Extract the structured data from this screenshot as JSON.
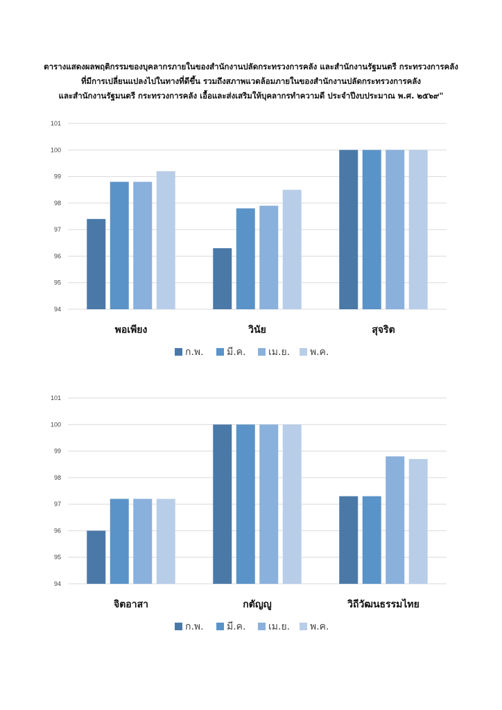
{
  "title_lines": [
    "ตารางแสดงผลพฤติกรรมของบุคลากรภายในของสำนักงานปลัดกระทรวงการคลัง และสำนักงานรัฐมนตรี กระทรวงการคลัง",
    "ที่มีการเปลี่ยนแปลงไปในทางที่ดีขึ้น รวมถึงสภาพแวดล้อมภายในของสำนักงานปลัดกระทรวงการคลัง",
    "และสำนักงานรัฐมนตรี กระทรวงการคลัง เอื้อและส่งเสริมให้บุคลากรทำความดี ประจำปีงบประมาณ พ.ศ. ๒๕๖๙\""
  ],
  "colors": [
    "#4a79a8",
    "#5a93c8",
    "#8ab0dc",
    "#b8cde8"
  ],
  "chart_data": [
    {
      "type": "bar",
      "categories": [
        "พอเพียง",
        "วินัย",
        "สุจริต"
      ],
      "series": [
        {
          "name": "ก.พ.",
          "values": [
            97.4,
            96.3,
            100
          ]
        },
        {
          "name": "มี.ค.",
          "values": [
            98.8,
            97.8,
            100
          ]
        },
        {
          "name": "เม.ย.",
          "values": [
            98.8,
            97.9,
            100
          ]
        },
        {
          "name": "พ.ค.",
          "values": [
            99.2,
            98.5,
            100
          ]
        }
      ],
      "ylim": [
        94,
        101
      ],
      "yticks": [
        "94",
        "95",
        "96",
        "97",
        "98",
        "99",
        "100",
        "101"
      ],
      "grid": true,
      "legend": "bottom"
    },
    {
      "type": "bar",
      "categories": [
        "จิตอาสา",
        "กตัญญู",
        "วิถีวัฒนธรรมไทย"
      ],
      "series": [
        {
          "name": "ก.พ.",
          "values": [
            96,
            100,
            97.3
          ]
        },
        {
          "name": "มี.ค.",
          "values": [
            97.2,
            100,
            97.3
          ]
        },
        {
          "name": "เม.ย.",
          "values": [
            97.2,
            100,
            98.8
          ]
        },
        {
          "name": "พ.ค.",
          "values": [
            97.2,
            100,
            98.7
          ]
        }
      ],
      "ylim": [
        94,
        101
      ],
      "yticks": [
        "94",
        "95",
        "96",
        "97",
        "98",
        "99",
        "100",
        "101"
      ],
      "grid": true,
      "legend": "bottom"
    }
  ]
}
